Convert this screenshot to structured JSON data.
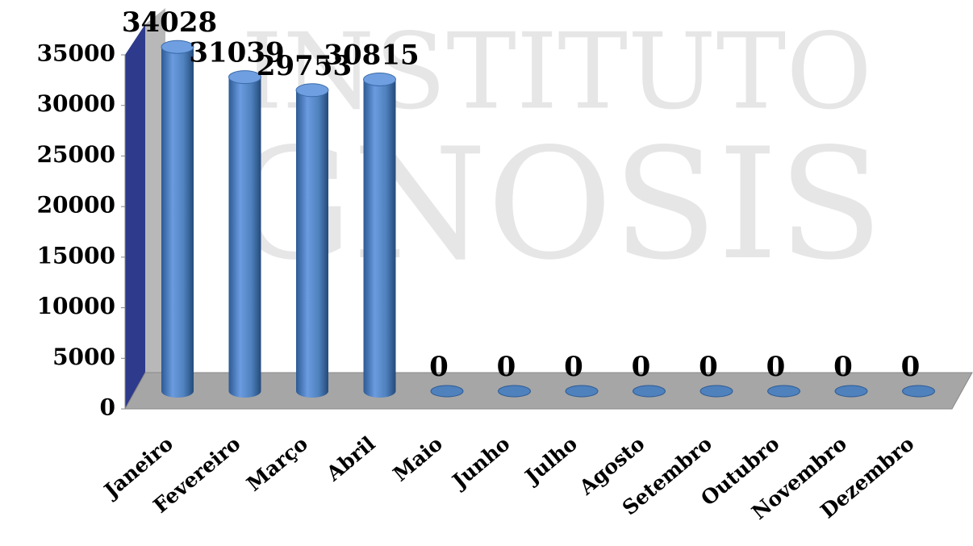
{
  "chart_data": {
    "type": "bar3d",
    "watermark": [
      "INSTITUTO",
      "GNOSIS"
    ],
    "categories": [
      "Janeiro",
      "Fevereiro",
      "Março",
      "Abril",
      "Maio",
      "Junho",
      "Julho",
      "Agosto",
      "Setembro",
      "Outubro",
      "Novembro",
      "Dezembro"
    ],
    "values": [
      34028,
      31039,
      29753,
      30815,
      0,
      0,
      0,
      0,
      0,
      0,
      0,
      0
    ],
    "color": "#4f81bd",
    "ylim": [
      0,
      35000
    ],
    "yticks": [
      0,
      5000,
      10000,
      15000,
      20000,
      25000,
      30000,
      35000
    ],
    "grid": false
  }
}
